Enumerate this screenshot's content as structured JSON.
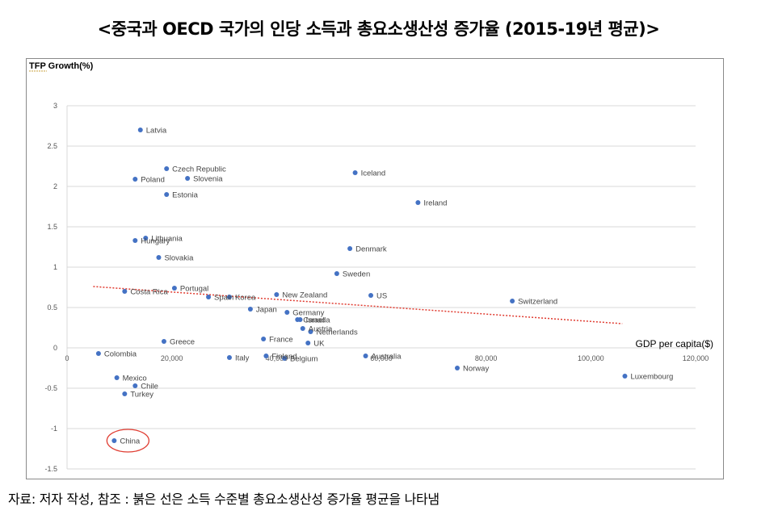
{
  "title": "<중국과 OECD 국가의 인당 소득과 총요소생산성 증가율 (2015-19년 평균)>",
  "source_note": "자료: 저자 작성, 참조 : 붉은 선은 소득 수준별 총요소생산성 증가율 평균을 나타냄",
  "colors": {
    "point": "#4472c4",
    "trend": "#e03c31",
    "highlight": "#e03c31",
    "grid": "#d9d9d9"
  },
  "chart_data": {
    "type": "scatter",
    "ylabel": "TFP Growth(%)",
    "xlabel": "GDP per capita($)",
    "xlim": [
      0,
      120000
    ],
    "ylim": [
      -1.5,
      3
    ],
    "xticks": [
      0,
      20000,
      40000,
      60000,
      80000,
      100000,
      120000
    ],
    "xtick_labels": [
      "0",
      "20,000",
      "40,000",
      "60,000",
      "80,000",
      "100,000",
      "120,000"
    ],
    "yticks": [
      -1.5,
      -1,
      -0.5,
      0,
      0.5,
      1,
      1.5,
      2,
      2.5,
      3
    ],
    "ytick_labels": [
      "-1.5",
      "-1",
      "-0.5",
      "0",
      "0.5",
      "1",
      "1.5",
      "2",
      "2.5",
      "3"
    ],
    "grid": true,
    "trend_line": {
      "x": [
        5000,
        106000
      ],
      "y": [
        0.76,
        0.3
      ]
    },
    "highlight": "China",
    "points": [
      {
        "label": "Latvia",
        "x": 14000,
        "y": 2.7
      },
      {
        "label": "Czech Republic",
        "x": 19000,
        "y": 2.22
      },
      {
        "label": "Poland",
        "x": 13000,
        "y": 2.09
      },
      {
        "label": "Slovenia",
        "x": 23000,
        "y": 2.1
      },
      {
        "label": "Estonia",
        "x": 19000,
        "y": 1.9
      },
      {
        "label": "Iceland",
        "x": 55000,
        "y": 2.17
      },
      {
        "label": "Ireland",
        "x": 67000,
        "y": 1.8
      },
      {
        "label": "Lithuania",
        "x": 15000,
        "y": 1.36
      },
      {
        "label": "Hungary",
        "x": 13000,
        "y": 1.33
      },
      {
        "label": "Slovakia",
        "x": 17500,
        "y": 1.12
      },
      {
        "label": "Denmark",
        "x": 54000,
        "y": 1.23
      },
      {
        "label": "Sweden",
        "x": 51500,
        "y": 0.92
      },
      {
        "label": "Portugal",
        "x": 20500,
        "y": 0.74
      },
      {
        "label": "Costa Rica",
        "x": 11000,
        "y": 0.7
      },
      {
        "label": "Spain",
        "x": 27000,
        "y": 0.63
      },
      {
        "label": "Korea",
        "x": 31000,
        "y": 0.63
      },
      {
        "label": "New Zealand",
        "x": 40000,
        "y": 0.66
      },
      {
        "label": "US",
        "x": 58000,
        "y": 0.65
      },
      {
        "label": "Switzerland",
        "x": 85000,
        "y": 0.58
      },
      {
        "label": "Japan",
        "x": 35000,
        "y": 0.48
      },
      {
        "label": "Germany",
        "x": 42000,
        "y": 0.44
      },
      {
        "label": "Canada",
        "x": 44000,
        "y": 0.35
      },
      {
        "label": "Israel",
        "x": 44500,
        "y": 0.35
      },
      {
        "label": "Austria",
        "x": 45000,
        "y": 0.24
      },
      {
        "label": "Netherlands",
        "x": 46500,
        "y": 0.2
      },
      {
        "label": "France",
        "x": 37500,
        "y": 0.11
      },
      {
        "label": "UK",
        "x": 46000,
        "y": 0.06
      },
      {
        "label": "Greece",
        "x": 18500,
        "y": 0.08
      },
      {
        "label": "Colombia",
        "x": 6000,
        "y": -0.07
      },
      {
        "label": "Italy",
        "x": 31000,
        "y": -0.12
      },
      {
        "label": "Finland",
        "x": 38000,
        "y": -0.1
      },
      {
        "label": "Belgium",
        "x": 41500,
        "y": -0.13
      },
      {
        "label": "Australia",
        "x": 57000,
        "y": -0.1
      },
      {
        "label": "Norway",
        "x": 74500,
        "y": -0.25
      },
      {
        "label": "Luxembourg",
        "x": 106500,
        "y": -0.35
      },
      {
        "label": "Mexico",
        "x": 9500,
        "y": -0.37
      },
      {
        "label": "Chile",
        "x": 13000,
        "y": -0.47
      },
      {
        "label": "Turkey",
        "x": 11000,
        "y": -0.57
      },
      {
        "label": "China",
        "x": 9000,
        "y": -1.15
      }
    ]
  }
}
